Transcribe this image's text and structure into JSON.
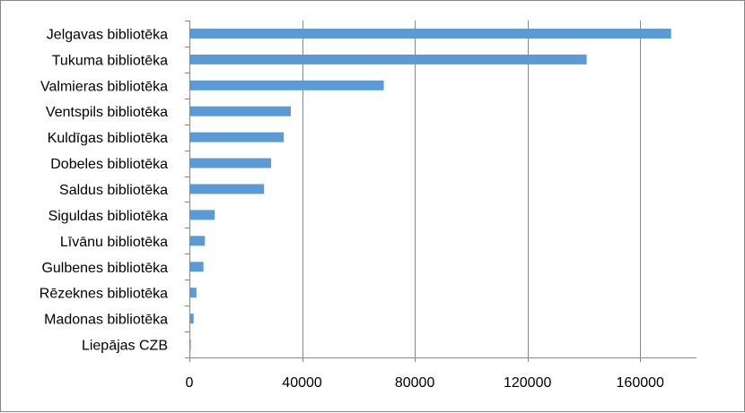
{
  "chart_data": {
    "type": "bar",
    "orientation": "horizontal",
    "categories": [
      "Jelgavas bibliotēka",
      "Tukuma bibliotēka",
      "Valmieras bibliotēka",
      "Ventspils bibliotēka",
      "Kuldīgas bibliotēka",
      "Dobeles bibliotēka",
      "Saldus bibliotēka",
      "Siguldas bibliotēka",
      "Līvānu bibliotēka",
      "Gulbenes bibliotēka",
      "Rēzeknes bibliotēka",
      "Madonas bibliotēka",
      "Liepājas CZB"
    ],
    "values": [
      171000,
      141000,
      69000,
      36000,
      33500,
      29000,
      26500,
      9000,
      5500,
      5000,
      2500,
      1500,
      500
    ],
    "xlim": [
      0,
      180000
    ],
    "xticks": [
      0,
      40000,
      80000,
      120000,
      160000
    ],
    "grid": "vertical major gridlines",
    "legend": "none",
    "bar_color": "#5B9BD5",
    "title": "",
    "xlabel": "",
    "ylabel": ""
  }
}
